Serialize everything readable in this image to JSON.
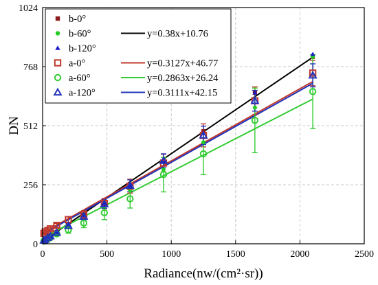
{
  "chart_data": {
    "type": "scatter",
    "xlabel": "Radiance(nw/(cm²·sr))",
    "ylabel": "DN",
    "xlim": [
      0,
      2500
    ],
    "ylim": [
      0,
      1024
    ],
    "xticks": [
      0,
      500,
      1000,
      1500,
      2000,
      2500
    ],
    "yticks": [
      0,
      256,
      512,
      768,
      1024
    ],
    "xtick_labels": [
      "0",
      "500",
      "1000",
      "1500",
      "2000",
      "2500"
    ],
    "ytick_labels": [
      "0",
      "256",
      "512",
      "768",
      "1024"
    ],
    "grid": true,
    "legend_position": "top-left",
    "x": [
      10,
      20,
      40,
      60,
      110,
      200,
      320,
      480,
      680,
      940,
      1250,
      1650,
      2100
    ],
    "series": [
      {
        "name": "b-0°",
        "marker": "square-filled",
        "color": "#8b1a1a",
        "values": [
          14,
          19,
          26,
          34,
          51,
          82,
          123,
          175,
          252,
          355,
          488,
          655,
          810
        ]
      },
      {
        "name": "b-60°",
        "marker": "circle-filled",
        "color": "#22cc22",
        "values": [
          13,
          16,
          23,
          30,
          45,
          77,
          112,
          162,
          232,
          322,
          440,
          590,
          810
        ]
      },
      {
        "name": "b-120°",
        "marker": "triangle-filled",
        "color": "#1a1acc",
        "values": [
          13,
          18,
          25,
          33,
          50,
          79,
          119,
          172,
          250,
          358,
          480,
          655,
          822
        ]
      },
      {
        "name": "a-0°",
        "marker": "square-open",
        "color": "#c0392b",
        "values": [
          45,
          52,
          58,
          65,
          80,
          105,
          125,
          175,
          250,
          350,
          470,
          620,
          740
        ],
        "error": [
          4,
          4,
          5,
          6,
          8,
          12,
          18,
          22,
          30,
          38,
          50,
          60,
          55
        ]
      },
      {
        "name": "a-60°",
        "marker": "circle-open",
        "color": "#33cc33",
        "values": [
          12,
          15,
          20,
          27,
          43,
          60,
          90,
          135,
          195,
          300,
          390,
          535,
          660
        ],
        "error": [
          4,
          4,
          5,
          6,
          9,
          14,
          20,
          30,
          40,
          75,
          90,
          140,
          160
        ]
      },
      {
        "name": "a-120°",
        "marker": "triangle-open",
        "color": "#2233bb",
        "values": [
          14,
          18,
          26,
          33,
          48,
          78,
          118,
          172,
          252,
          360,
          470,
          620,
          730
        ],
        "error": [
          4,
          4,
          5,
          6,
          8,
          10,
          14,
          18,
          25,
          30,
          40,
          45,
          50
        ]
      }
    ],
    "fit_lines": [
      {
        "equation": "y=0.38x+10.76",
        "slope": 0.38,
        "intercept": 10.76,
        "color": "#000000"
      },
      {
        "equation": "y=0.3127x+46.77",
        "slope": 0.3127,
        "intercept": 46.77,
        "color": "#c0392b"
      },
      {
        "equation": "y=0.2863x+26.24",
        "slope": 0.2863,
        "intercept": 26.24,
        "color": "#33cc33"
      },
      {
        "equation": "y=0.3111x+42.15",
        "slope": 0.3111,
        "intercept": 42.15,
        "color": "#2233bb"
      }
    ],
    "fit_x_range": [
      0,
      2100
    ],
    "legend_entries": [
      {
        "label": "b-0°",
        "marker": "square-filled",
        "color": "#8b1a1a",
        "fit": null
      },
      {
        "label": "b-60°",
        "marker": "circle-filled",
        "color": "#22cc22",
        "fit": 0
      },
      {
        "label": "b-120°",
        "marker": "triangle-filled",
        "color": "#1a1acc",
        "fit": null
      },
      {
        "label": "a-0°",
        "marker": "square-open",
        "color": "#c0392b",
        "fit": 1
      },
      {
        "label": "a-60°",
        "marker": "circle-open",
        "color": "#33cc33",
        "fit": 2
      },
      {
        "label": "a-120°",
        "marker": "triangle-open",
        "color": "#2233bb",
        "fit": 3
      }
    ]
  }
}
